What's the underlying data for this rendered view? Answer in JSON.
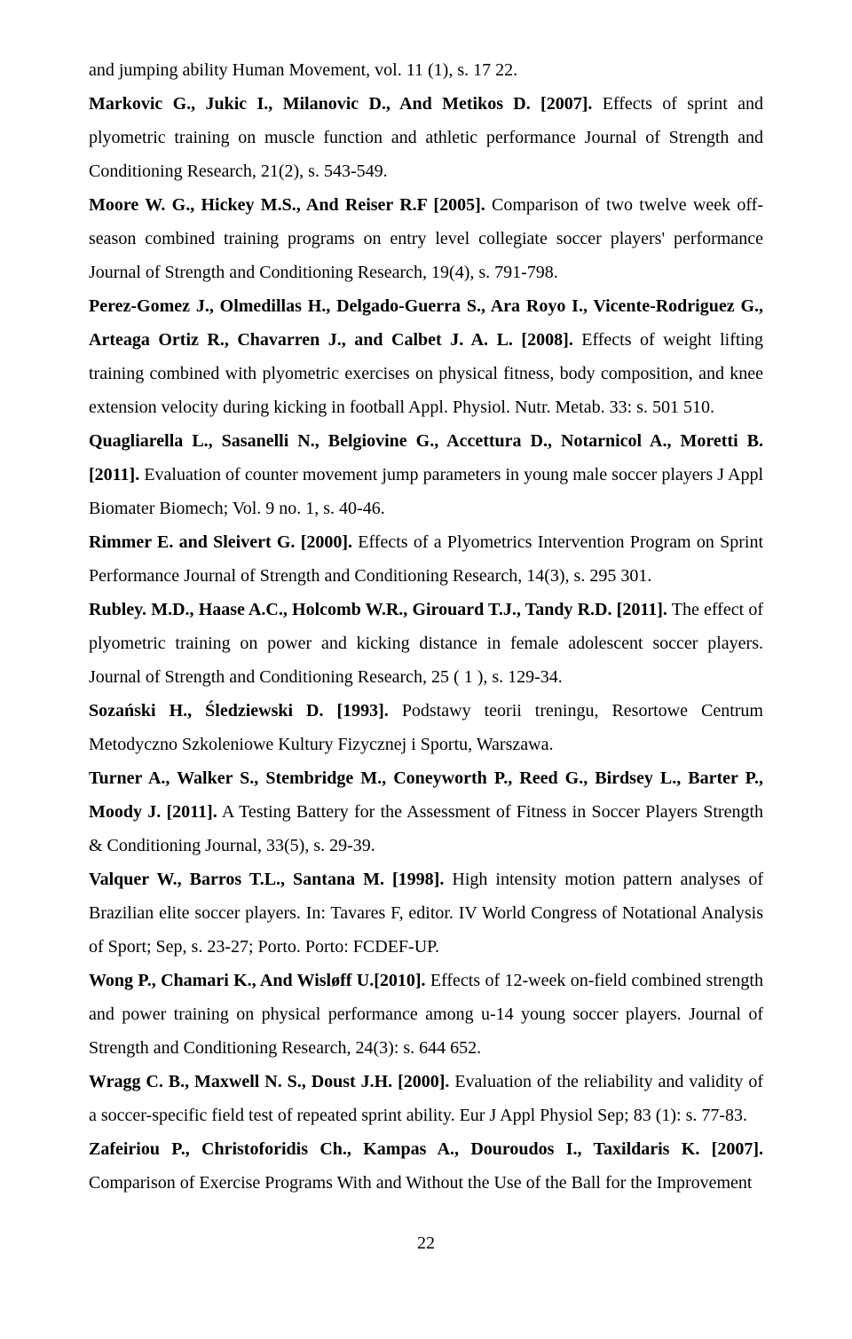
{
  "refs": [
    {
      "pre": "and jumping ability Human Movement, vol. 11 (1), s. 17 22.",
      "authors": "Markovic G., Jukic I., Milanovic D., And Metikos D. [2007].",
      "body": " Effects of sprint and plyometric training on muscle function and athletic performance Journal of Strength and Conditioning Research, 21(2), s. 543-549."
    },
    {
      "authors": "Moore W. G., Hickey M.S., And Reiser R.F [2005].",
      "body": " Comparison of two twelve week off-season combined training programs on entry level collegiate soccer players' performance Journal of Strength and Conditioning Research, 19(4), s. 791-798."
    },
    {
      "authors": "Perez-Gomez J., Olmedillas H., Delgado-Guerra S., Ara Royo I., Vicente-Rodriguez G., Arteaga Ortiz R., Chavarren J., and Calbet J. A. L. [2008].",
      "body": " Effects of weight lifting training combined with plyometric exercises on physical fitness, body composition, and knee extension velocity during kicking in football Appl. Physiol. Nutr. Metab. 33: s. 501 510."
    },
    {
      "authors": "Quagliarella L., Sasanelli N., Belgiovine G., Accettura D., Notarnicol A., Moretti B. [2011].",
      "body": " Evaluation of counter movement jump parameters in young male soccer players J Appl Biomater Biomech; Vol. 9 no. 1, s. 40-46."
    },
    {
      "authors": "Rimmer E. and Sleivert G. [2000].",
      "body": " Effects of a Plyometrics Intervention Program on Sprint Performance Journal of Strength and Conditioning Research, 14(3), s. 295 301."
    },
    {
      "authors": "Rubley. M.D., Haase A.C., Holcomb W.R., Girouard T.J., Tandy R.D. [2011].",
      "body": " The effect of plyometric training on power and kicking distance in female adolescent soccer players. Journal of Strength and Conditioning Research, 25 ( 1 ), s. 129-34."
    },
    {
      "authors": "Sozański H., Śledziewski D. [1993].",
      "body": " Podstawy teorii treningu, Resortowe Centrum Metodyczno Szkoleniowe Kultury Fizycznej i Sportu, Warszawa."
    },
    {
      "authors": "Turner A., Walker S., Stembridge M., Coneyworth P., Reed G., Birdsey L., Barter P., Moody J. [2011].",
      "body": " A Testing Battery for the Assessment of Fitness in Soccer Players Strength & Conditioning Journal, 33(5), s. 29-39."
    },
    {
      "authors": "Valquer W., Barros T.L., Santana M. [1998].",
      "body": " High intensity motion pattern analyses of Brazilian elite soccer players. In: Tavares F, editor. IV World Congress of Notational Analysis of Sport; Sep, s. 23-27; Porto. Porto: FCDEF-UP."
    },
    {
      "authors": "Wong P., Chamari K., And Wisløff U.[2010].",
      "body": " Effects of 12-week on-field combined strength and power training on physical performance among u-14 young soccer players. Journal of Strength and Conditioning Research, 24(3): s. 644 652."
    },
    {
      "authors": "Wragg C. B., Maxwell N. S., Doust J.H. [2000].",
      "body": " Evaluation of the reliability and validity of a soccer-specific field test of repeated sprint ability. Eur J Appl Physiol Sep; 83 (1): s. 77-83."
    },
    {
      "authors": "Zafeiriou P., Christoforidis Ch., Kampas A., Douroudos I., Taxildaris K. [2007].",
      "body": " Comparison of Exercise Programs With and Without the Use of the Ball for the Improvement"
    }
  ],
  "pageNumber": "22"
}
